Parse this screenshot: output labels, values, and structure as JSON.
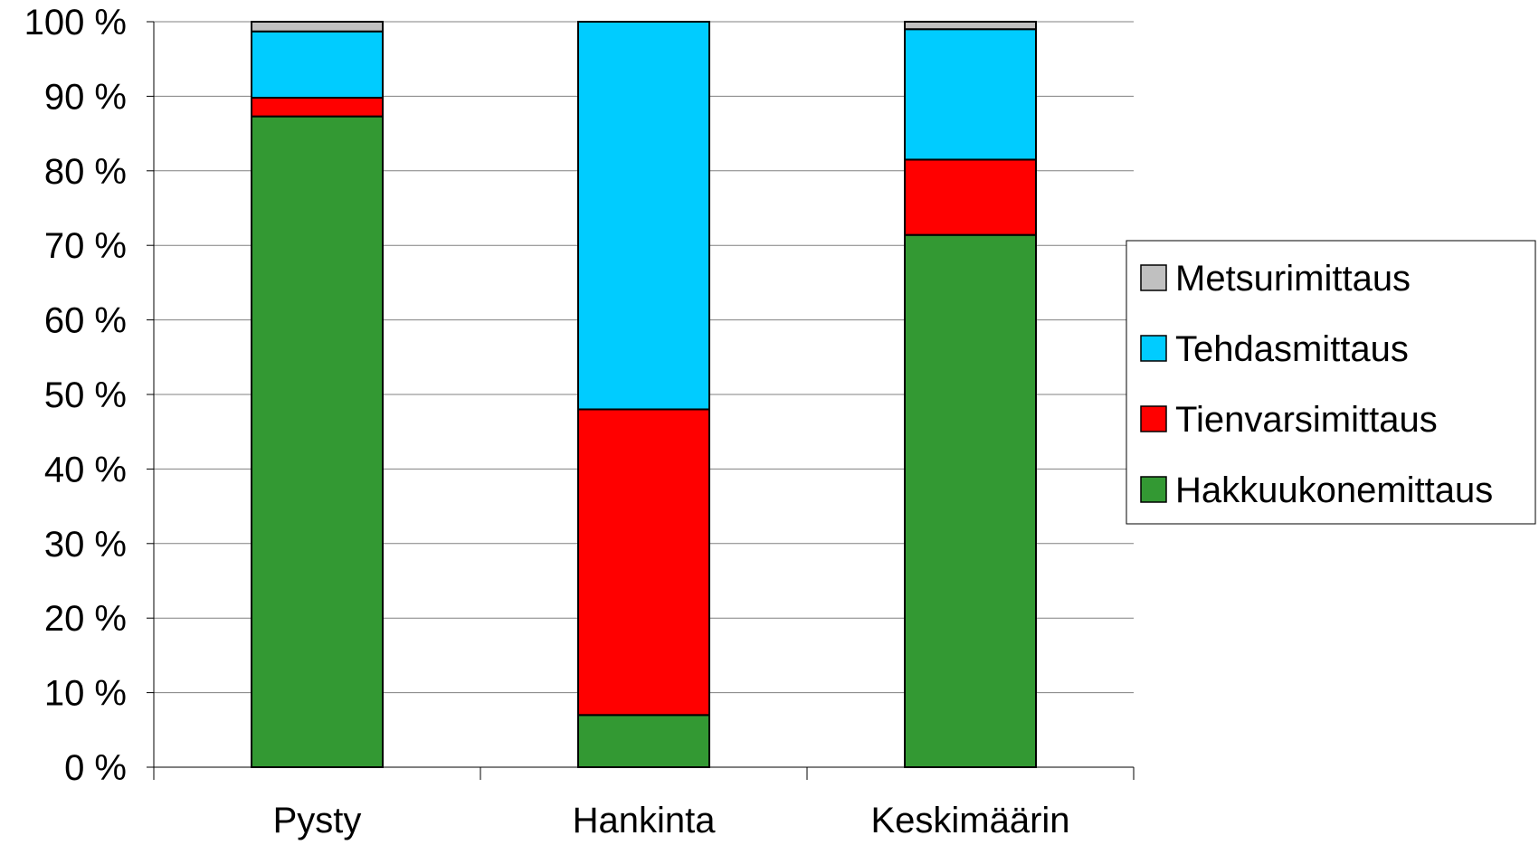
{
  "chart_data": {
    "type": "bar",
    "stacked": true,
    "percent": true,
    "categories": [
      "Pysty",
      "Hankinta",
      "Keskimäärin"
    ],
    "series": [
      {
        "name": "Hakkuukonemittaus",
        "color": "#339933",
        "values": [
          87.3,
          7.0,
          71.4
        ]
      },
      {
        "name": "Tienvarsimittaus",
        "color": "#ff0000",
        "values": [
          2.5,
          41.0,
          10.1
        ]
      },
      {
        "name": "Tehdasmittaus",
        "color": "#00ccff",
        "values": [
          8.9,
          52.0,
          17.5
        ]
      },
      {
        "name": "Metsurimittaus",
        "color": "#c0c0c0",
        "values": [
          1.3,
          0.0,
          1.0
        ]
      }
    ],
    "legend_order": [
      "Metsurimittaus",
      "Tehdasmittaus",
      "Tienvarsimittaus",
      "Hakkuukonemittaus"
    ],
    "ylim": [
      0,
      100
    ],
    "yticks": [
      "0 %",
      "10 %",
      "20 %",
      "30 %",
      "40 %",
      "50 %",
      "60 %",
      "70 %",
      "80 %",
      "90 %",
      "100 %"
    ],
    "grid": true,
    "legend_position": "right",
    "title": "",
    "xlabel": "",
    "ylabel": ""
  }
}
